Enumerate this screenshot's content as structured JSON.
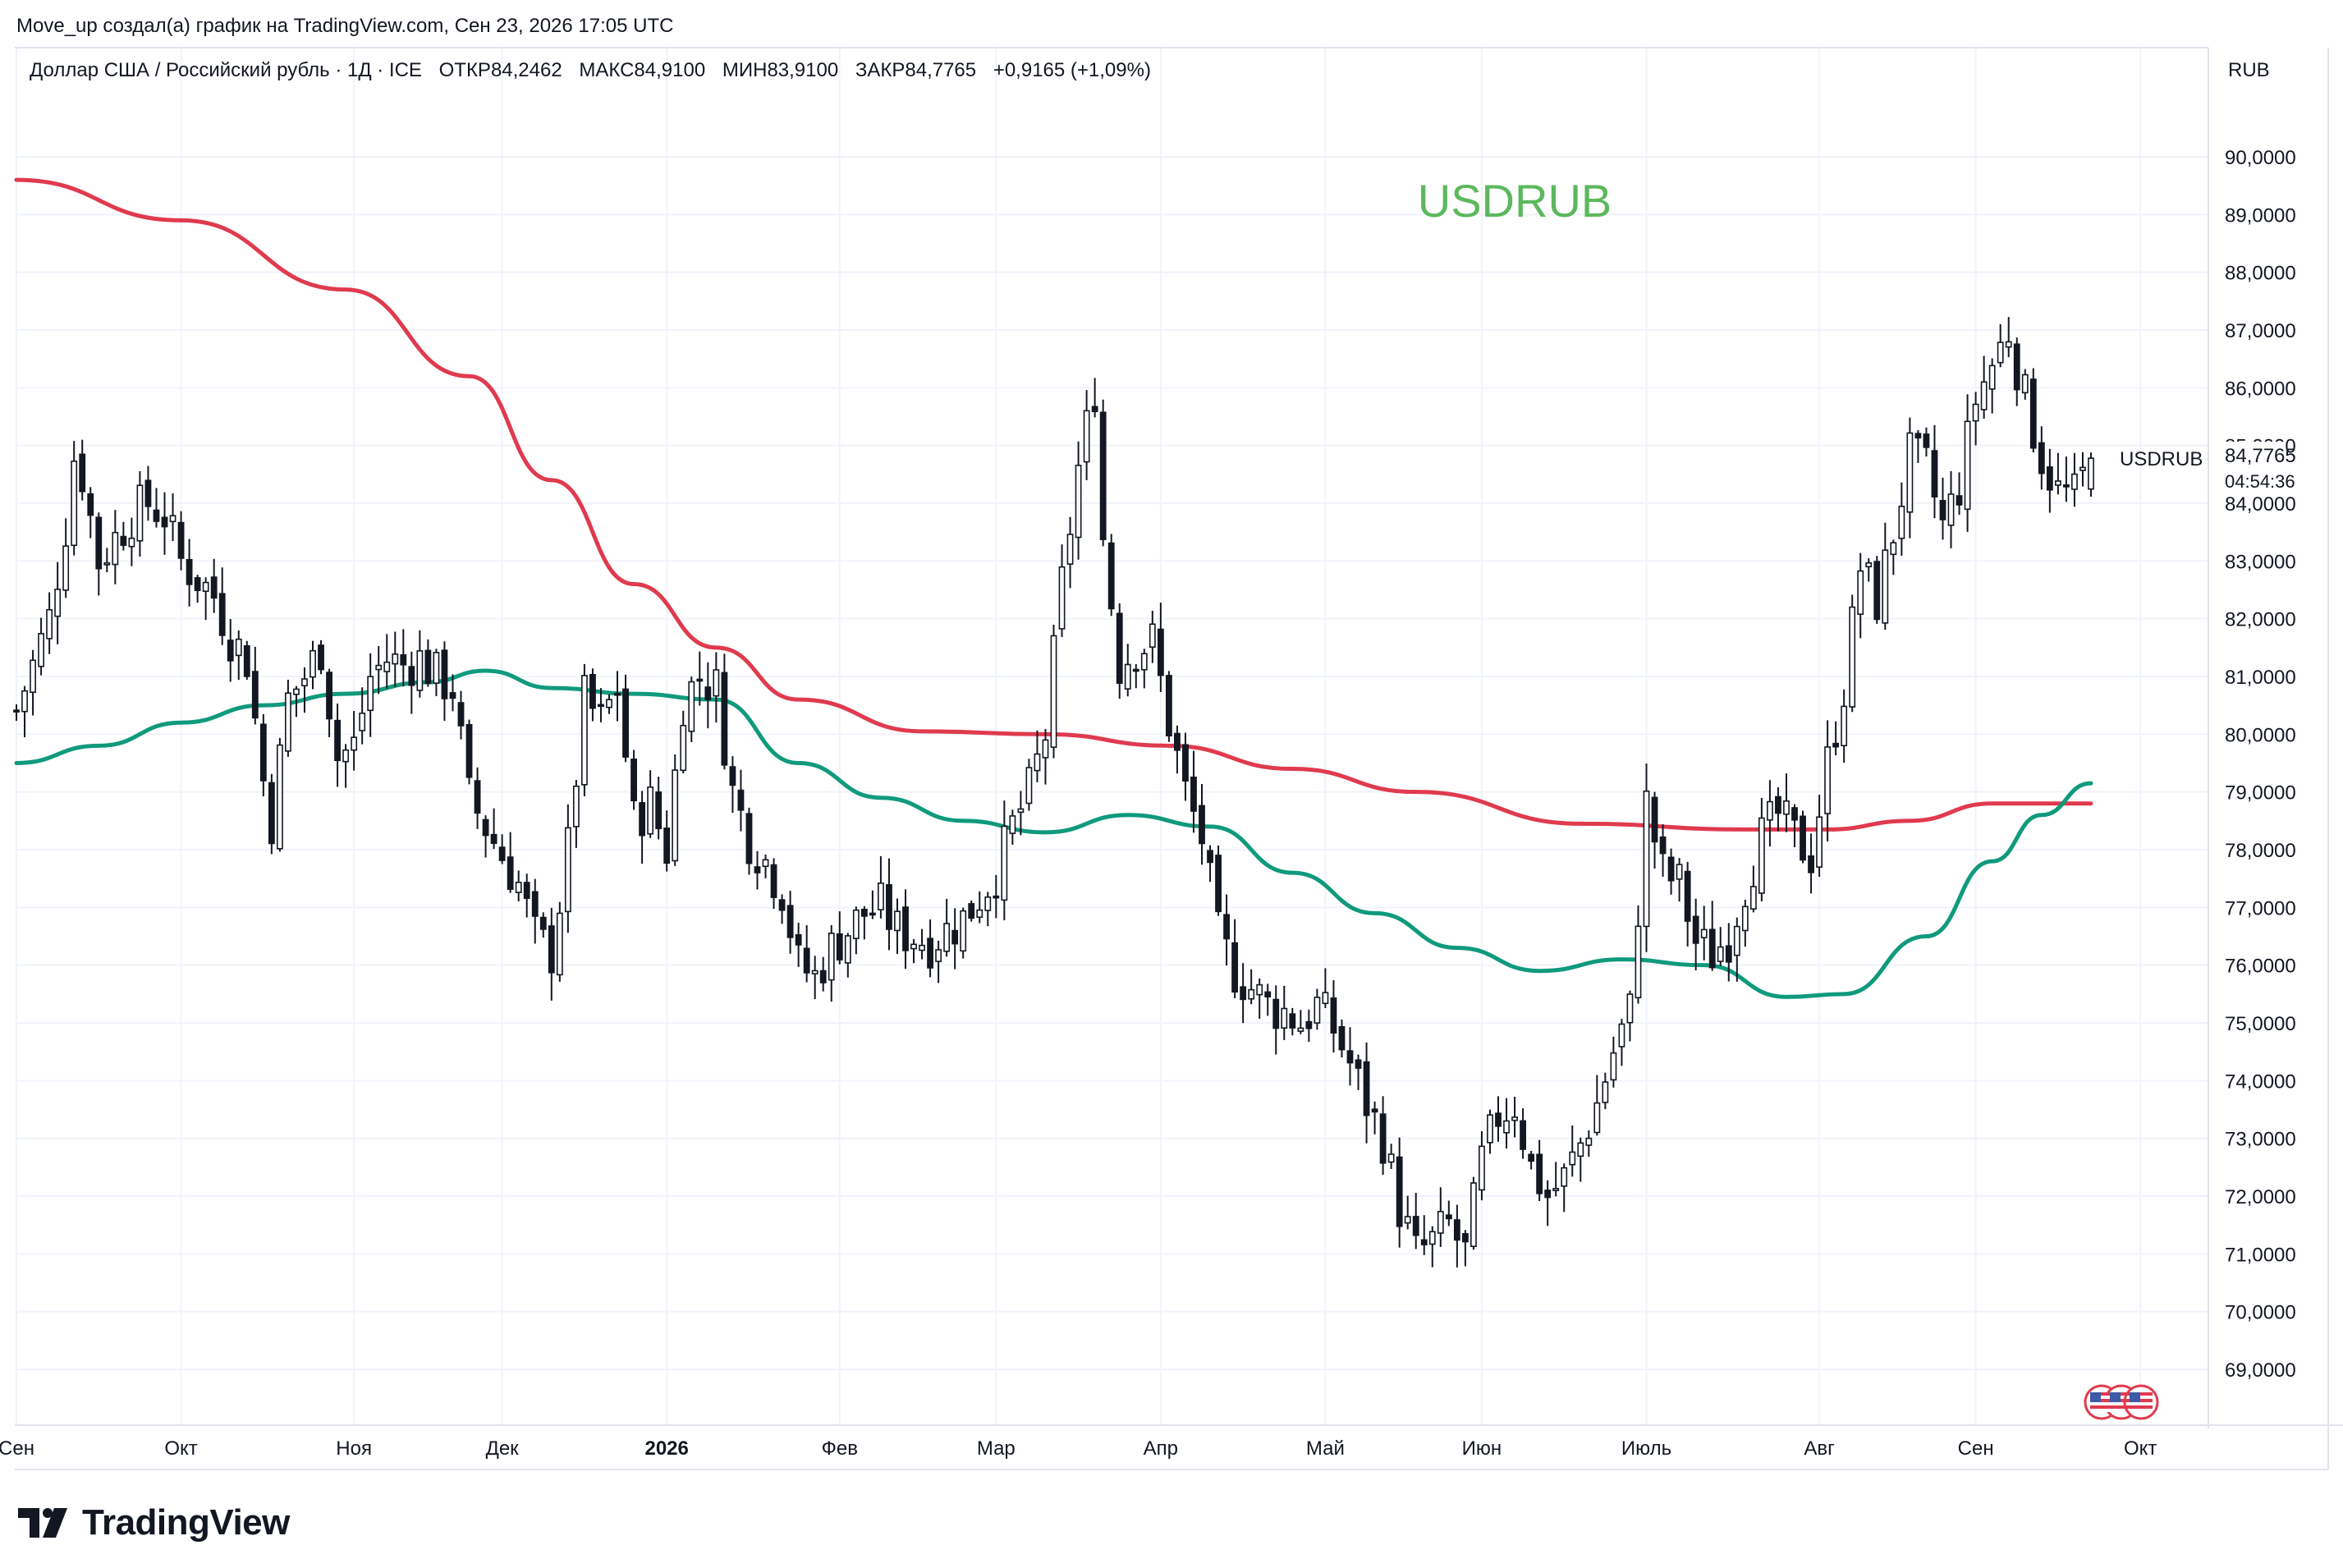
{
  "header": {
    "attribution": "Move_up создал(а) график на TradingView.com, Сен 23, 2026 17:05 UTC",
    "instrument": "Доллар США / Российский рубль · 1Д · ICE",
    "open_label": "ОТКР",
    "open_value": "84,2462",
    "high_label": "МАКС",
    "high_value": "84,9100",
    "low_label": "МИН",
    "low_value": "83,9100",
    "close_label": "ЗАКР",
    "close_value": "84,7765",
    "change": "+0,9165 (+1,09%)"
  },
  "currency_unit": "RUB",
  "symbol_label": "USDRUB",
  "current_price": "84,7765",
  "countdown": "04:54:36",
  "footer": {
    "brand": "TradingView"
  },
  "colors": {
    "ma_long": "#e03a4e",
    "ma_short": "#0f9a7c",
    "watermark": "#5cb85c",
    "candle": "#131722"
  },
  "icons": [
    "tradingview-logo-icon",
    "us-flag-event-icon"
  ],
  "chart_data": {
    "type": "candlestick",
    "title": "USDRUB",
    "ylim": [
      68,
      91
    ],
    "y_ticks": [
      "69,0000",
      "70,0000",
      "71,0000",
      "72,0000",
      "73,0000",
      "74,0000",
      "75,0000",
      "76,0000",
      "77,0000",
      "78,0000",
      "79,0000",
      "80,0000",
      "81,0000",
      "82,0000",
      "83,0000",
      "84,0000",
      "85,0000",
      "86,0000",
      "87,0000",
      "88,0000",
      "89,0000",
      "90,0000"
    ],
    "x_ticks": [
      "Сен",
      "Окт",
      "Ноя",
      "Дек",
      "2026",
      "Фев",
      "Мар",
      "Апр",
      "Май",
      "Июн",
      "Июль",
      "Авг",
      "Сен",
      "Окт"
    ],
    "x_tick_positions": [
      0,
      20,
      41,
      59,
      79,
      100,
      119,
      139,
      159,
      178,
      198,
      219,
      238,
      258
    ],
    "bars_count": 253,
    "close_path": [
      [
        0,
        80.4
      ],
      [
        2,
        81.2
      ],
      [
        4,
        82.0
      ],
      [
        6,
        83.6
      ],
      [
        7,
        84.8
      ],
      [
        8,
        84.5
      ],
      [
        10,
        83.0
      ],
      [
        12,
        83.4
      ],
      [
        14,
        83.8
      ],
      [
        16,
        84.0
      ],
      [
        18,
        83.8
      ],
      [
        20,
        83.0
      ],
      [
        22,
        82.7
      ],
      [
        24,
        82.4
      ],
      [
        26,
        81.7
      ],
      [
        28,
        81.3
      ],
      [
        30,
        79.2
      ],
      [
        31,
        78.5
      ],
      [
        33,
        80.6
      ],
      [
        35,
        81.0
      ],
      [
        37,
        81.5
      ],
      [
        39,
        79.6
      ],
      [
        41,
        79.8
      ],
      [
        43,
        81.0
      ],
      [
        45,
        81.3
      ],
      [
        47,
        81.2
      ],
      [
        49,
        81.3
      ],
      [
        51,
        81.0
      ],
      [
        53,
        80.8
      ],
      [
        55,
        78.9
      ],
      [
        57,
        78.4
      ],
      [
        59,
        77.9
      ],
      [
        61,
        77.4
      ],
      [
        63,
        76.5
      ],
      [
        65,
        76.2
      ],
      [
        67,
        78.0
      ],
      [
        69,
        80.6
      ],
      [
        71,
        80.2
      ],
      [
        73,
        80.8
      ],
      [
        75,
        78.5
      ],
      [
        77,
        78.8
      ],
      [
        79,
        78.0
      ],
      [
        81,
        80.6
      ],
      [
        83,
        81.0
      ],
      [
        85,
        80.8
      ],
      [
        87,
        79.0
      ],
      [
        89,
        78.2
      ],
      [
        91,
        77.8
      ],
      [
        93,
        77.3
      ],
      [
        95,
        76.0
      ],
      [
        97,
        75.8
      ],
      [
        99,
        76.3
      ],
      [
        101,
        76.6
      ],
      [
        103,
        76.9
      ],
      [
        105,
        77.0
      ],
      [
        107,
        76.6
      ],
      [
        109,
        76.5
      ],
      [
        111,
        76.4
      ],
      [
        113,
        76.6
      ],
      [
        115,
        76.8
      ],
      [
        117,
        77.2
      ],
      [
        119,
        77.6
      ],
      [
        121,
        78.4
      ],
      [
        123,
        79.0
      ],
      [
        125,
        80.0
      ],
      [
        127,
        82.6
      ],
      [
        129,
        84.6
      ],
      [
        131,
        86.0
      ],
      [
        132,
        83.4
      ],
      [
        134,
        81.2
      ],
      [
        136,
        81.5
      ],
      [
        138,
        81.6
      ],
      [
        140,
        80.2
      ],
      [
        142,
        79.0
      ],
      [
        144,
        78.2
      ],
      [
        146,
        76.5
      ],
      [
        148,
        75.9
      ],
      [
        150,
        75.6
      ],
      [
        152,
        75.3
      ],
      [
        154,
        75.2
      ],
      [
        156,
        75.0
      ],
      [
        158,
        75.3
      ],
      [
        160,
        74.9
      ],
      [
        162,
        74.3
      ],
      [
        164,
        73.6
      ],
      [
        166,
        73.0
      ],
      [
        168,
        71.8
      ],
      [
        170,
        71.0
      ],
      [
        172,
        71.2
      ],
      [
        174,
        71.5
      ],
      [
        176,
        71.0
      ],
      [
        178,
        72.6
      ],
      [
        180,
        73.4
      ],
      [
        182,
        73.6
      ],
      [
        184,
        72.5
      ],
      [
        186,
        72.0
      ],
      [
        188,
        72.3
      ],
      [
        190,
        72.9
      ],
      [
        192,
        73.6
      ],
      [
        194,
        74.5
      ],
      [
        196,
        75.2
      ],
      [
        198,
        78.8
      ],
      [
        200,
        77.6
      ],
      [
        202,
        77.4
      ],
      [
        204,
        76.4
      ],
      [
        206,
        76.2
      ],
      [
        208,
        76.5
      ],
      [
        210,
        77.4
      ],
      [
        212,
        78.2
      ],
      [
        214,
        78.6
      ],
      [
        216,
        78.2
      ],
      [
        218,
        77.9
      ],
      [
        220,
        79.5
      ],
      [
        222,
        80.8
      ],
      [
        224,
        82.9
      ],
      [
        226,
        82.3
      ],
      [
        228,
        83.5
      ],
      [
        230,
        84.8
      ],
      [
        232,
        84.6
      ],
      [
        234,
        83.6
      ],
      [
        236,
        84.3
      ],
      [
        238,
        85.8
      ],
      [
        240,
        86.4
      ],
      [
        242,
        87.0
      ],
      [
        244,
        85.8
      ],
      [
        246,
        84.8
      ],
      [
        248,
        84.2
      ],
      [
        250,
        84.1
      ],
      [
        252,
        84.78
      ]
    ],
    "series": [
      {
        "name": "",
        "type": "moving_average",
        "points": [
          [
            0,
            89.6
          ],
          [
            20,
            88.9
          ],
          [
            40,
            87.7
          ],
          [
            55,
            86.2
          ],
          [
            65,
            84.4
          ],
          [
            75,
            82.6
          ],
          [
            85,
            81.5
          ],
          [
            95,
            80.6
          ],
          [
            110,
            80.05
          ],
          [
            125,
            80.0
          ],
          [
            140,
            79.8
          ],
          [
            155,
            79.4
          ],
          [
            170,
            79.0
          ],
          [
            190,
            78.45
          ],
          [
            210,
            78.35
          ],
          [
            220,
            78.35
          ],
          [
            230,
            78.5
          ],
          [
            240,
            78.8
          ],
          [
            252,
            78.8
          ]
        ]
      },
      {
        "name": "",
        "type": "moving_average",
        "points": [
          [
            0,
            79.5
          ],
          [
            10,
            79.8
          ],
          [
            20,
            80.2
          ],
          [
            30,
            80.5
          ],
          [
            40,
            80.7
          ],
          [
            50,
            80.9
          ],
          [
            57,
            81.1
          ],
          [
            65,
            80.8
          ],
          [
            75,
            80.7
          ],
          [
            85,
            80.6
          ],
          [
            95,
            79.5
          ],
          [
            105,
            78.9
          ],
          [
            115,
            78.5
          ],
          [
            125,
            78.3
          ],
          [
            135,
            78.6
          ],
          [
            145,
            78.4
          ],
          [
            155,
            77.6
          ],
          [
            165,
            76.9
          ],
          [
            175,
            76.3
          ],
          [
            185,
            75.9
          ],
          [
            195,
            76.1
          ],
          [
            205,
            76.0
          ],
          [
            215,
            75.45
          ],
          [
            222,
            75.5
          ],
          [
            232,
            76.5
          ],
          [
            240,
            77.8
          ],
          [
            246,
            78.6
          ],
          [
            252,
            79.15
          ]
        ]
      }
    ]
  }
}
